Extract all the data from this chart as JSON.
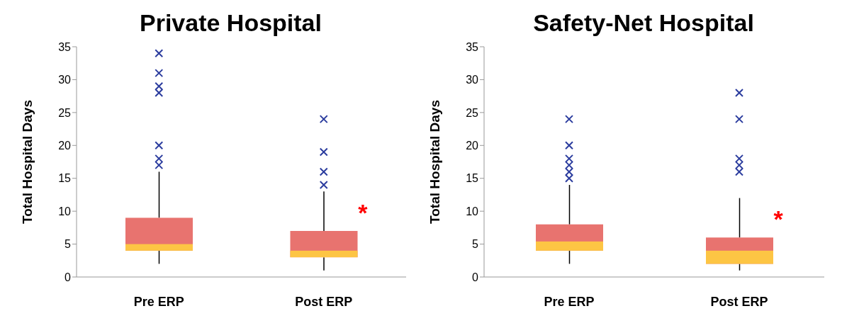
{
  "chart_data": [
    {
      "type": "box",
      "title": "Private Hospital",
      "ylabel": "Total Hospital Days",
      "categories": [
        "Pre ERP",
        "Post ERP"
      ],
      "ylim": [
        0,
        35
      ],
      "yticks": [
        0,
        5,
        10,
        15,
        20,
        25,
        30,
        35
      ],
      "grid": false,
      "marker": "cross",
      "colors": [
        "#fdc544",
        "#2b3c9e"
      ],
      "series": [
        {
          "color": "#e8736f",
          "boxes": [
            {
              "low": 2,
              "q1": 4,
              "median": 5,
              "q3": 9,
              "high": 16,
              "outliers": [
                17,
                18,
                20,
                28,
                29,
                31,
                34
              ]
            },
            {
              "low": 1,
              "q1": 3,
              "median": 4,
              "q3": 7,
              "high": 13,
              "outliers": [
                14,
                16,
                19,
                24
              ]
            }
          ]
        }
      ],
      "annotations": [
        {
          "text": "*",
          "x": "Post ERP",
          "y": 10
        }
      ]
    },
    {
      "type": "box",
      "title": "Safety-Net Hospital",
      "ylabel": "Total Hospital Days",
      "categories": [
        "Pre ERP",
        "Post ERP"
      ],
      "ylim": [
        0,
        35
      ],
      "yticks": [
        0,
        5,
        10,
        15,
        20,
        25,
        30,
        35
      ],
      "grid": false,
      "marker": "cross",
      "colors": [
        "#fdc544",
        "#2b3c9e"
      ],
      "series": [
        {
          "color": "#e8736f",
          "boxes": [
            {
              "low": 2,
              "q1": 4,
              "median": 5.4,
              "q3": 8,
              "high": 14,
              "outliers": [
                15,
                16,
                17,
                18,
                20,
                24
              ]
            },
            {
              "low": 1,
              "q1": 2,
              "median": 4,
              "q3": 6,
              "high": 12,
              "outliers": [
                16,
                17,
                18,
                24,
                28
              ]
            }
          ]
        }
      ],
      "annotations": [
        {
          "text": "*",
          "x": "Post ERP",
          "y": 9
        }
      ]
    }
  ]
}
